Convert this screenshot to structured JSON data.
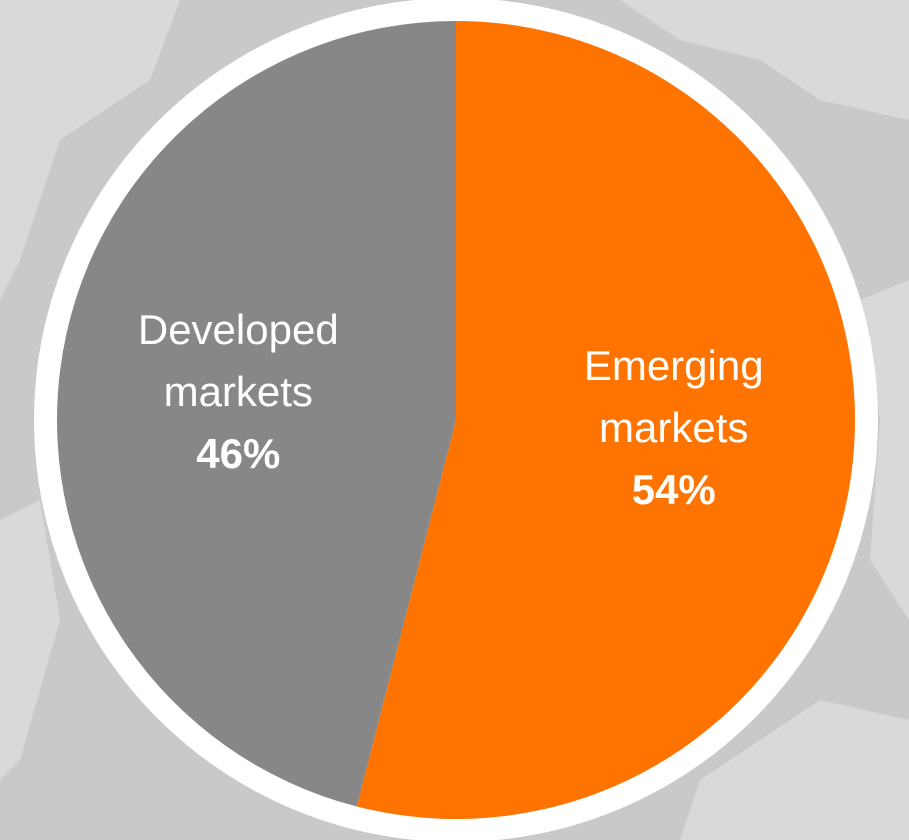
{
  "chart_data": {
    "type": "pie",
    "categories": [
      "Emerging markets",
      "Developed markets"
    ],
    "values": [
      54,
      46
    ],
    "value_labels": [
      "54%",
      "46%"
    ],
    "colors": [
      "#ff7400",
      "#878787"
    ]
  }
}
